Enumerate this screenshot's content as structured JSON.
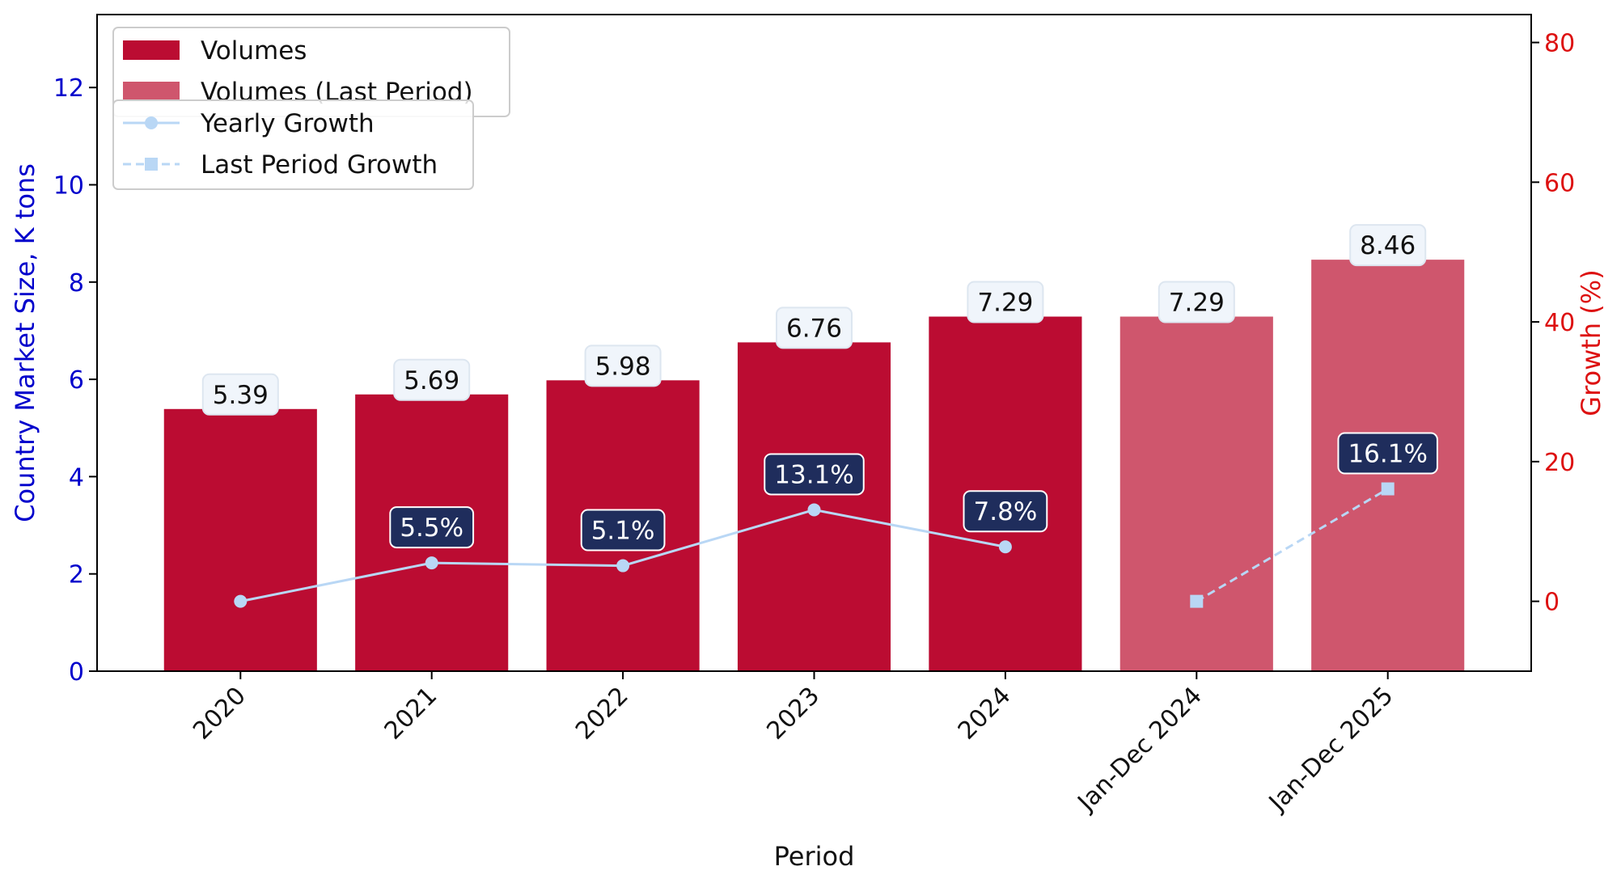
{
  "chart_data": {
    "type": "bar",
    "categories": [
      "2020",
      "2021",
      "2022",
      "2023",
      "2024",
      "Jan-Dec 2024",
      "Jan-Dec 2025"
    ],
    "xlabel": "Period",
    "ylabel": "Country Market Size, K tons",
    "y2label": "Growth (%)",
    "ylim": [
      0,
      13.5
    ],
    "y2lim": [
      -10,
      84
    ],
    "yticks": [
      0,
      2,
      4,
      6,
      8,
      10,
      12
    ],
    "y2ticks": [
      0,
      20,
      40,
      60,
      80
    ],
    "series": [
      {
        "name": "Volumes",
        "type": "bar",
        "axis": "left",
        "color": "#bb0c32",
        "values": [
          5.39,
          5.69,
          5.98,
          6.76,
          7.29,
          null,
          null
        ],
        "labels": [
          "5.39",
          "5.69",
          "5.98",
          "6.76",
          "7.29",
          "",
          ""
        ]
      },
      {
        "name": "Volumes (Last Period)",
        "type": "bar",
        "axis": "left",
        "color": "#cf566d",
        "values": [
          null,
          null,
          null,
          null,
          null,
          7.29,
          8.46
        ],
        "labels": [
          "",
          "",
          "",
          "",
          "",
          "7.29",
          "8.46"
        ]
      },
      {
        "name": "Yearly Growth",
        "type": "line",
        "axis": "right",
        "style": "solid",
        "marker": "circle",
        "color": "#b9d7f5",
        "values": [
          0,
          5.5,
          5.1,
          13.1,
          7.8,
          null,
          null
        ],
        "labels": [
          "",
          "5.5%",
          "5.1%",
          "13.1%",
          "7.8%",
          "",
          ""
        ]
      },
      {
        "name": "Last Period Growth",
        "type": "line",
        "axis": "right",
        "style": "dashed",
        "marker": "square",
        "color": "#b9d7f5",
        "values": [
          null,
          null,
          null,
          null,
          null,
          0,
          16.1
        ],
        "labels": [
          "",
          "",
          "",
          "",
          "",
          "",
          "16.1%"
        ]
      }
    ],
    "legend_placement": "top-left",
    "grid": false,
    "colors": {
      "left_axis": "#0000cc",
      "right_axis": "#dd1111",
      "bar_label_bg": "#f0f5fb",
      "growth_label_bg": "#1f2d5c"
    }
  }
}
